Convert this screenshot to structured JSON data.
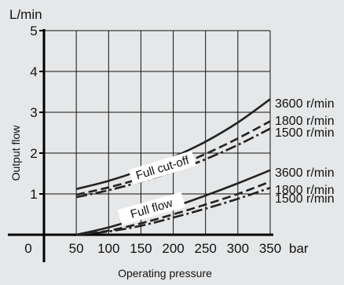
{
  "chart_data": {
    "type": "line",
    "unit_y": "L/min",
    "unit_x": "bar",
    "xlabel": "Operating pressure",
    "ylabel": "Output flow",
    "xlim": [
      0,
      350
    ],
    "ylim": [
      0,
      5
    ],
    "x_ticks": [
      50,
      100,
      150,
      200,
      250,
      300,
      350
    ],
    "x_tick_labels": [
      "50",
      "100",
      "150",
      "200",
      "250",
      "300",
      "350"
    ],
    "y_ticks": [
      1,
      2,
      3,
      4,
      5
    ],
    "y_tick_labels": [
      "1",
      "2",
      "3",
      "4",
      "5"
    ],
    "origin_label": "0",
    "grid": true,
    "colors": {
      "background": "#e6e7e8",
      "grid": "#111111",
      "line": "#222222"
    },
    "group_labels": [
      {
        "text": "Full cut-off",
        "x": 185,
        "y": 1.55
      },
      {
        "text": "Full flow",
        "x": 168,
        "y": 0.55
      }
    ],
    "series": [
      {
        "name": "3600 r/min",
        "group": "Full cut-off",
        "style": "solid",
        "x": [
          50,
          100,
          150,
          200,
          250,
          300,
          350
        ],
        "values": [
          1.12,
          1.32,
          1.58,
          1.9,
          2.28,
          2.75,
          3.32
        ]
      },
      {
        "name": "1800 r/min",
        "group": "Full cut-off",
        "style": "dashed",
        "x": [
          50,
          100,
          150,
          200,
          250,
          300,
          350
        ],
        "values": [
          0.98,
          1.16,
          1.38,
          1.65,
          1.98,
          2.36,
          2.78
        ]
      },
      {
        "name": "1500 r/min",
        "group": "Full cut-off",
        "style": "dashdot",
        "x": [
          50,
          100,
          150,
          200,
          250,
          300,
          350
        ],
        "values": [
          0.92,
          1.09,
          1.3,
          1.55,
          1.85,
          2.2,
          2.6
        ]
      },
      {
        "name": "3600 r/min",
        "group": "Full flow",
        "style": "solid",
        "x": [
          50,
          100,
          150,
          200,
          250,
          300,
          350
        ],
        "values": [
          0.0,
          0.18,
          0.42,
          0.68,
          0.96,
          1.26,
          1.58
        ]
      },
      {
        "name": "1800 r/min",
        "group": "Full flow",
        "style": "dashed",
        "x": [
          50,
          100,
          150,
          200,
          250,
          300,
          350
        ],
        "values": [
          0.0,
          0.1,
          0.28,
          0.5,
          0.74,
          1.0,
          1.3
        ]
      },
      {
        "name": "1500 r/min",
        "group": "Full flow",
        "style": "dashdot",
        "x": [
          50,
          100,
          150,
          200,
          250,
          300,
          350
        ],
        "values": [
          0.0,
          0.08,
          0.22,
          0.42,
          0.64,
          0.88,
          1.15
        ]
      }
    ],
    "end_labels": [
      "3600 r/min",
      "1800 r/min",
      "1500 r/min",
      "3600 r/min",
      "1800 r/min",
      "1500 r/min"
    ]
  }
}
